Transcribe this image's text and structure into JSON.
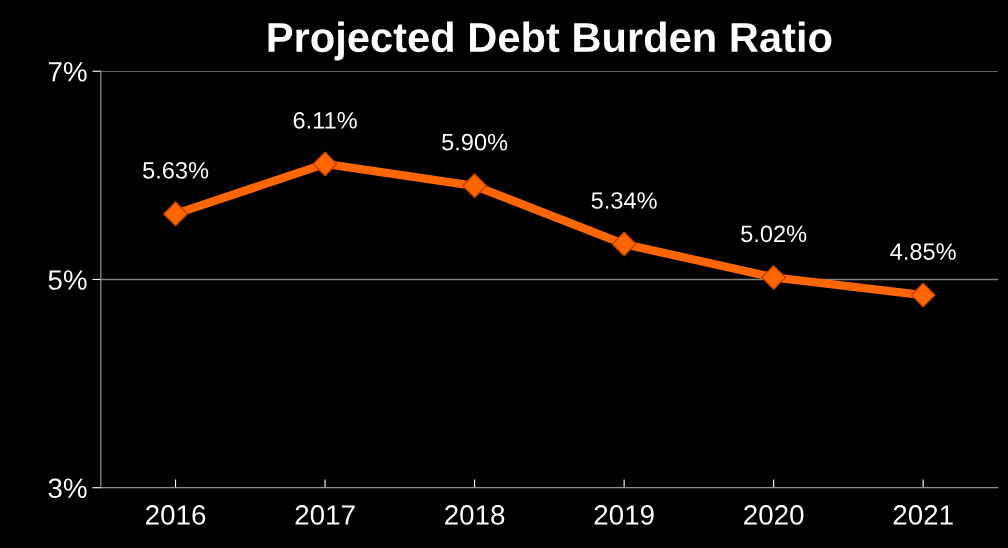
{
  "chart_data": {
    "type": "line",
    "title": "Projected Debt Burden Ratio",
    "categories": [
      "2016",
      "2017",
      "2018",
      "2019",
      "2020",
      "2021"
    ],
    "series": [
      {
        "color": "#ff6600",
        "values": [
          5.63,
          6.11,
          5.9,
          5.34,
          5.02,
          4.85
        ],
        "value_labels": [
          "5.63%",
          "6.11%",
          "5.90%",
          "5.34%",
          "5.02%",
          "4.85%"
        ]
      }
    ],
    "ylim": [
      3,
      7
    ],
    "yticks": [
      {
        "value": 3,
        "label": "3%"
      },
      {
        "value": 5,
        "label": "5%"
      },
      {
        "value": 7,
        "label": "7%"
      }
    ],
    "grid": "y",
    "marker": "diamond",
    "line_style": "solid",
    "legend": false
  }
}
